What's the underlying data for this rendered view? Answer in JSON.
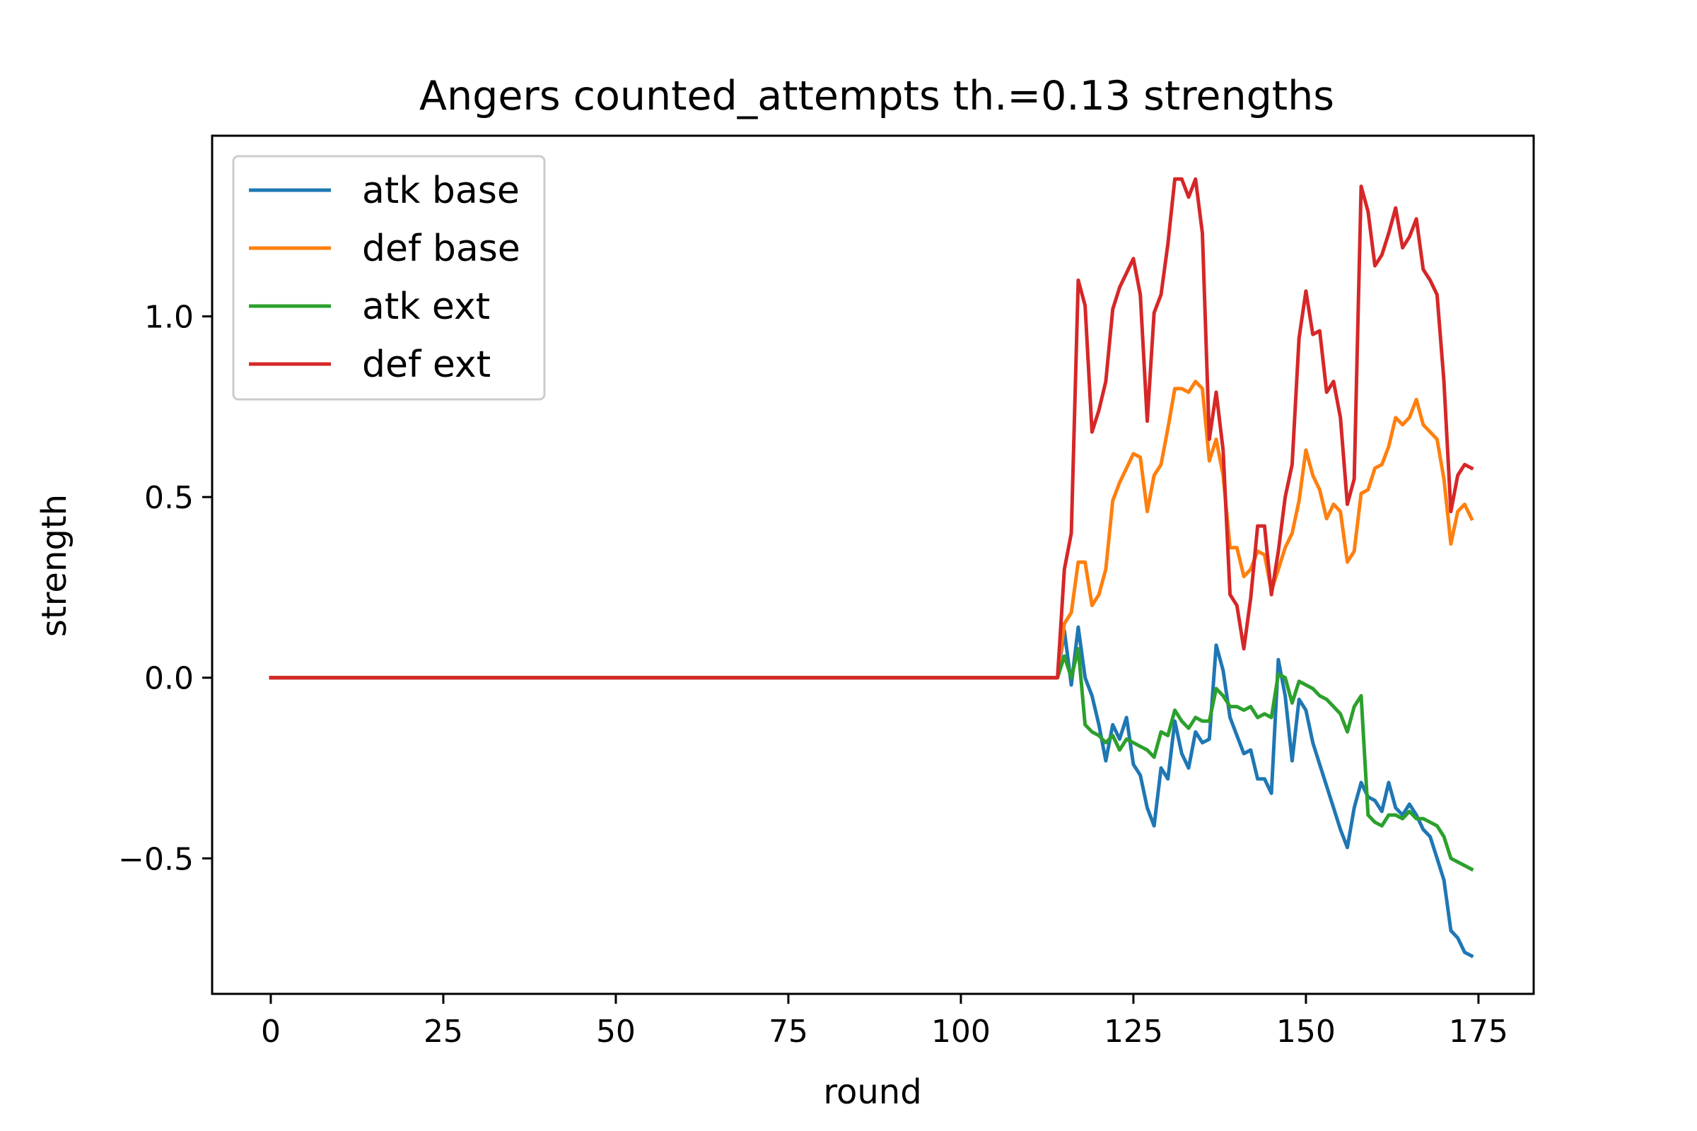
{
  "chart_data": {
    "type": "line",
    "title": "Angers counted_attempts th.=0.13 strengths",
    "xlabel": "round",
    "ylabel": "strength",
    "xlim": [
      -8.5,
      183
    ],
    "ylim": [
      -0.875,
      1.5
    ],
    "xticks": [
      0,
      25,
      50,
      75,
      100,
      125,
      150,
      175
    ],
    "xtick_labels": [
      "0",
      "25",
      "50",
      "75",
      "100",
      "125",
      "150",
      "175"
    ],
    "yticks": [
      -0.5,
      0.0,
      0.5,
      1.0
    ],
    "ytick_labels": [
      "−0.5",
      "0.0",
      "0.5",
      "1.0"
    ],
    "grid": false,
    "legend_position": "upper-left",
    "series": [
      {
        "name": "atk base",
        "color": "#1f77b4",
        "x": [
          0,
          114,
          115,
          116,
          117,
          118,
          119,
          120,
          121,
          122,
          123,
          124,
          125,
          126,
          127,
          128,
          129,
          130,
          131,
          132,
          133,
          134,
          135,
          136,
          137,
          138,
          139,
          140,
          141,
          142,
          143,
          144,
          145,
          146,
          147,
          148,
          149,
          150,
          151,
          152,
          153,
          154,
          155,
          156,
          157,
          158,
          159,
          160,
          161,
          162,
          163,
          164,
          165,
          166,
          167,
          168,
          169,
          170,
          171,
          172,
          173,
          174
        ],
        "values": [
          0,
          0,
          0.13,
          -0.02,
          0.14,
          0.0,
          -0.05,
          -0.13,
          -0.23,
          -0.13,
          -0.17,
          -0.11,
          -0.24,
          -0.27,
          -0.36,
          -0.41,
          -0.25,
          -0.28,
          -0.12,
          -0.21,
          -0.25,
          -0.15,
          -0.18,
          -0.17,
          0.09,
          0.02,
          -0.11,
          -0.16,
          -0.21,
          -0.2,
          -0.28,
          -0.28,
          -0.32,
          0.05,
          -0.05,
          -0.23,
          -0.06,
          -0.09,
          -0.18,
          -0.24,
          -0.3,
          -0.36,
          -0.42,
          -0.47,
          -0.36,
          -0.29,
          -0.33,
          -0.34,
          -0.37,
          -0.29,
          -0.36,
          -0.38,
          -0.35,
          -0.38,
          -0.42,
          -0.44,
          -0.5,
          -0.56,
          -0.7,
          -0.72,
          -0.76,
          -0.77
        ]
      },
      {
        "name": "def base",
        "color": "#ff7f0e",
        "x": [
          0,
          114,
          115,
          116,
          117,
          118,
          119,
          120,
          121,
          122,
          123,
          124,
          125,
          126,
          127,
          128,
          129,
          130,
          131,
          132,
          133,
          134,
          135,
          136,
          137,
          138,
          139,
          140,
          141,
          142,
          143,
          144,
          145,
          146,
          147,
          148,
          149,
          150,
          151,
          152,
          153,
          154,
          155,
          156,
          157,
          158,
          159,
          160,
          161,
          162,
          163,
          164,
          165,
          166,
          167,
          168,
          169,
          170,
          171,
          172,
          173,
          174
        ],
        "values": [
          0,
          0,
          0.15,
          0.18,
          0.32,
          0.32,
          0.2,
          0.23,
          0.3,
          0.49,
          0.54,
          0.58,
          0.62,
          0.61,
          0.46,
          0.56,
          0.59,
          0.69,
          0.8,
          0.8,
          0.79,
          0.82,
          0.8,
          0.6,
          0.66,
          0.56,
          0.36,
          0.36,
          0.28,
          0.3,
          0.35,
          0.34,
          0.24,
          0.3,
          0.36,
          0.4,
          0.49,
          0.63,
          0.56,
          0.52,
          0.44,
          0.48,
          0.46,
          0.32,
          0.35,
          0.51,
          0.52,
          0.58,
          0.59,
          0.64,
          0.72,
          0.7,
          0.72,
          0.77,
          0.7,
          0.68,
          0.66,
          0.55,
          0.37,
          0.46,
          0.48,
          0.44
        ]
      },
      {
        "name": "atk ext",
        "color": "#2ca02c",
        "x": [
          0,
          114,
          115,
          116,
          117,
          118,
          119,
          120,
          121,
          122,
          123,
          124,
          125,
          126,
          127,
          128,
          129,
          130,
          131,
          132,
          133,
          134,
          135,
          136,
          137,
          138,
          139,
          140,
          141,
          142,
          143,
          144,
          145,
          146,
          147,
          148,
          149,
          150,
          151,
          152,
          153,
          154,
          155,
          156,
          157,
          158,
          159,
          160,
          161,
          162,
          163,
          164,
          165,
          166,
          167,
          168,
          169,
          170,
          171,
          172,
          173,
          174
        ],
        "values": [
          0,
          0,
          0.06,
          0.0,
          0.08,
          -0.13,
          -0.15,
          -0.16,
          -0.18,
          -0.16,
          -0.2,
          -0.17,
          -0.18,
          -0.19,
          -0.2,
          -0.22,
          -0.15,
          -0.16,
          -0.09,
          -0.12,
          -0.14,
          -0.11,
          -0.12,
          -0.12,
          -0.03,
          -0.05,
          -0.08,
          -0.08,
          -0.09,
          -0.08,
          -0.11,
          -0.1,
          -0.11,
          0.01,
          0.0,
          -0.07,
          -0.01,
          -0.02,
          -0.03,
          -0.05,
          -0.06,
          -0.08,
          -0.1,
          -0.15,
          -0.08,
          -0.05,
          -0.38,
          -0.4,
          -0.41,
          -0.38,
          -0.38,
          -0.39,
          -0.37,
          -0.39,
          -0.39,
          -0.4,
          -0.41,
          -0.44,
          -0.5,
          -0.51,
          -0.52,
          -0.53
        ]
      },
      {
        "name": "def ext",
        "color": "#d62728",
        "x": [
          0,
          114,
          115,
          116,
          117,
          118,
          119,
          120,
          121,
          122,
          123,
          124,
          125,
          126,
          127,
          128,
          129,
          130,
          131,
          132,
          133,
          134,
          135,
          136,
          137,
          138,
          139,
          140,
          141,
          142,
          143,
          144,
          145,
          146,
          147,
          148,
          149,
          150,
          151,
          152,
          153,
          154,
          155,
          156,
          157,
          158,
          159,
          160,
          161,
          162,
          163,
          164,
          165,
          166,
          167,
          168,
          169,
          170,
          171,
          172,
          173,
          174
        ],
        "values": [
          0,
          0,
          0.3,
          0.4,
          1.1,
          1.03,
          0.68,
          0.74,
          0.82,
          1.02,
          1.08,
          1.12,
          1.16,
          1.06,
          0.71,
          1.01,
          1.06,
          1.2,
          1.38,
          1.38,
          1.33,
          1.38,
          1.23,
          0.66,
          0.79,
          0.63,
          0.23,
          0.2,
          0.08,
          0.22,
          0.42,
          0.42,
          0.23,
          0.35,
          0.5,
          0.59,
          0.94,
          1.07,
          0.95,
          0.96,
          0.79,
          0.82,
          0.72,
          0.48,
          0.55,
          1.36,
          1.29,
          1.14,
          1.17,
          1.23,
          1.3,
          1.19,
          1.22,
          1.27,
          1.13,
          1.1,
          1.06,
          0.82,
          0.46,
          0.56,
          0.59,
          0.58
        ]
      }
    ]
  }
}
